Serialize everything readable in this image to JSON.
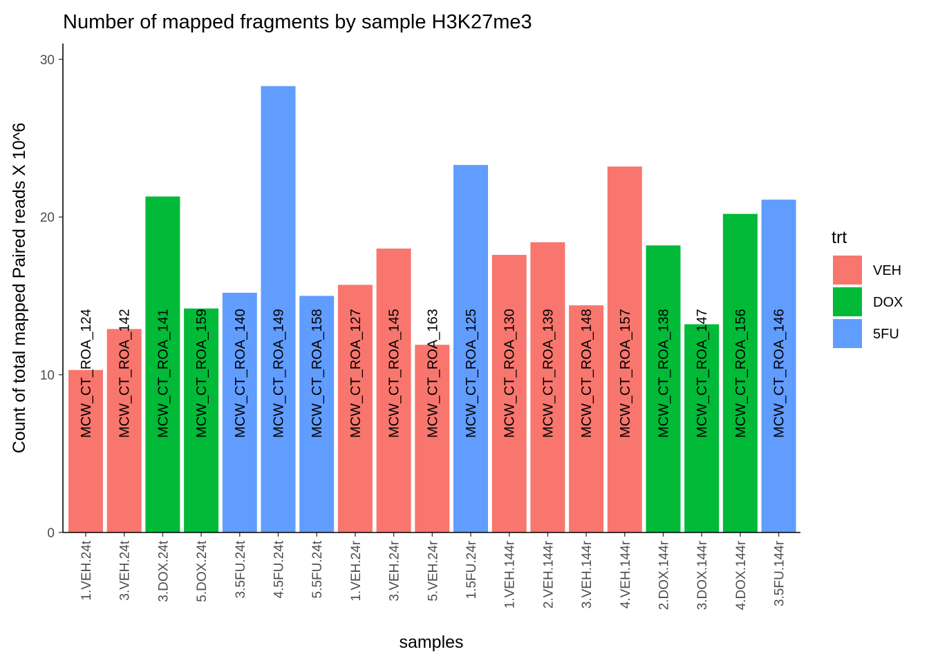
{
  "chart_data": {
    "type": "bar",
    "title": "Number of mapped fragments by sample H3K27me3",
    "xlabel": "samples",
    "ylabel": "Count of total mapped Paired reads X 10^6",
    "ylim": [
      0,
      31
    ],
    "yticks": [
      0,
      10,
      20,
      30
    ],
    "grid": false,
    "legend": {
      "title": "trt",
      "placement": "right",
      "entries": [
        {
          "name": "VEH",
          "color": "#F8766D"
        },
        {
          "name": "DOX",
          "color": "#00BA38"
        },
        {
          "name": "5FU",
          "color": "#619CFF"
        }
      ]
    },
    "categories": [
      "1.VEH.24t",
      "3.VEH.24t",
      "3.DOX.24t",
      "5.DOX.24t",
      "3.5FU.24t",
      "4.5FU.24t",
      "5.5FU.24t",
      "1.VEH.24r",
      "3.VEH.24r",
      "5.VEH.24r",
      "1.5FU.24r",
      "1.VEH.144r",
      "2.VEH.144r",
      "3.VEH.144r",
      "4.VEH.144r",
      "2.DOX.144r",
      "3.DOX.144r",
      "4.DOX.144r",
      "3.5FU.144r"
    ],
    "values": [
      10.3,
      12.9,
      21.3,
      14.2,
      15.2,
      28.3,
      15.0,
      15.7,
      18.0,
      11.9,
      23.3,
      17.6,
      18.4,
      14.4,
      23.2,
      18.2,
      13.2,
      20.2,
      21.1
    ],
    "trt": [
      "VEH",
      "VEH",
      "DOX",
      "DOX",
      "5FU",
      "5FU",
      "5FU",
      "VEH",
      "VEH",
      "VEH",
      "5FU",
      "VEH",
      "VEH",
      "VEH",
      "VEH",
      "DOX",
      "DOX",
      "DOX",
      "5FU"
    ],
    "bar_labels": [
      "MCW_CT_ROA_124",
      "MCW_CT_ROA_142",
      "MCW_CT_ROA_141",
      "MCW_CT_ROA_159",
      "MCW_CT_ROA_140",
      "MCW_CT_ROA_149",
      "MCW_CT_ROA_158",
      "MCW_CT_ROA_127",
      "MCW_CT_ROA_145",
      "MCW_CT_ROA_163",
      "MCW_CT_ROA_125",
      "MCW_CT_ROA_130",
      "MCW_CT_ROA_139",
      "MCW_CT_ROA_148",
      "MCW_CT_ROA_157",
      "MCW_CT_ROA_138",
      "MCW_CT_ROA_147",
      "MCW_CT_ROA_156",
      "MCW_CT_ROA_146"
    ],
    "bar_label_y": 6.0
  }
}
